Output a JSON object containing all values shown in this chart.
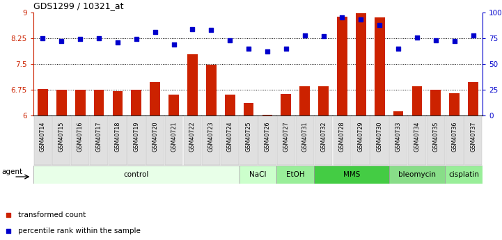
{
  "title": "GDS1299 / 10321_at",
  "samples": [
    "GSM40714",
    "GSM40715",
    "GSM40716",
    "GSM40717",
    "GSM40718",
    "GSM40719",
    "GSM40720",
    "GSM40721",
    "GSM40722",
    "GSM40723",
    "GSM40724",
    "GSM40725",
    "GSM40726",
    "GSM40727",
    "GSM40731",
    "GSM40732",
    "GSM40728",
    "GSM40729",
    "GSM40730",
    "GSM40733",
    "GSM40734",
    "GSM40735",
    "GSM40736",
    "GSM40737"
  ],
  "bar_values": [
    6.78,
    6.74,
    6.75,
    6.74,
    6.7,
    6.75,
    6.97,
    6.61,
    7.79,
    7.47,
    6.61,
    6.36,
    6.02,
    6.62,
    6.86,
    6.86,
    8.87,
    8.98,
    8.85,
    6.12,
    6.86,
    6.75,
    6.65,
    6.97
  ],
  "dot_percentiles": [
    75,
    72,
    74,
    75,
    71,
    74,
    81,
    69,
    84,
    83,
    73,
    65,
    62,
    65,
    78,
    77,
    95,
    93,
    88,
    65,
    76,
    73,
    72,
    78
  ],
  "ylim_left": [
    6,
    9
  ],
  "ylim_right": [
    0,
    100
  ],
  "yticks_left": [
    6,
    6.75,
    7.5,
    8.25,
    9
  ],
  "yticks_right": [
    0,
    25,
    50,
    75,
    100
  ],
  "ytick_labels_left": [
    "6",
    "6.75",
    "7.5",
    "8.25",
    "9"
  ],
  "ytick_labels_right": [
    "0",
    "25",
    "50",
    "75",
    "100%"
  ],
  "hlines": [
    6.75,
    7.5,
    8.25
  ],
  "bar_color": "#cc2200",
  "dot_color": "#0000cc",
  "bg_color": "#ffffff",
  "xlabel_bg": "#d8d8d8",
  "groups": [
    {
      "label": "control",
      "start": 0,
      "end": 11,
      "color": "#e8ffe8"
    },
    {
      "label": "NaCl",
      "start": 11,
      "end": 13,
      "color": "#ccffcc"
    },
    {
      "label": "EtOH",
      "start": 13,
      "end": 15,
      "color": "#99ee99"
    },
    {
      "label": "MMS",
      "start": 15,
      "end": 19,
      "color": "#44cc44"
    },
    {
      "label": "bleomycin",
      "start": 19,
      "end": 22,
      "color": "#88dd88"
    },
    {
      "label": "cisplatin",
      "start": 22,
      "end": 24,
      "color": "#99ee99"
    }
  ],
  "agent_label": "agent",
  "legend_items": [
    {
      "label": "transformed count",
      "color": "#cc2200"
    },
    {
      "label": "percentile rank within the sample",
      "color": "#0000cc"
    }
  ]
}
